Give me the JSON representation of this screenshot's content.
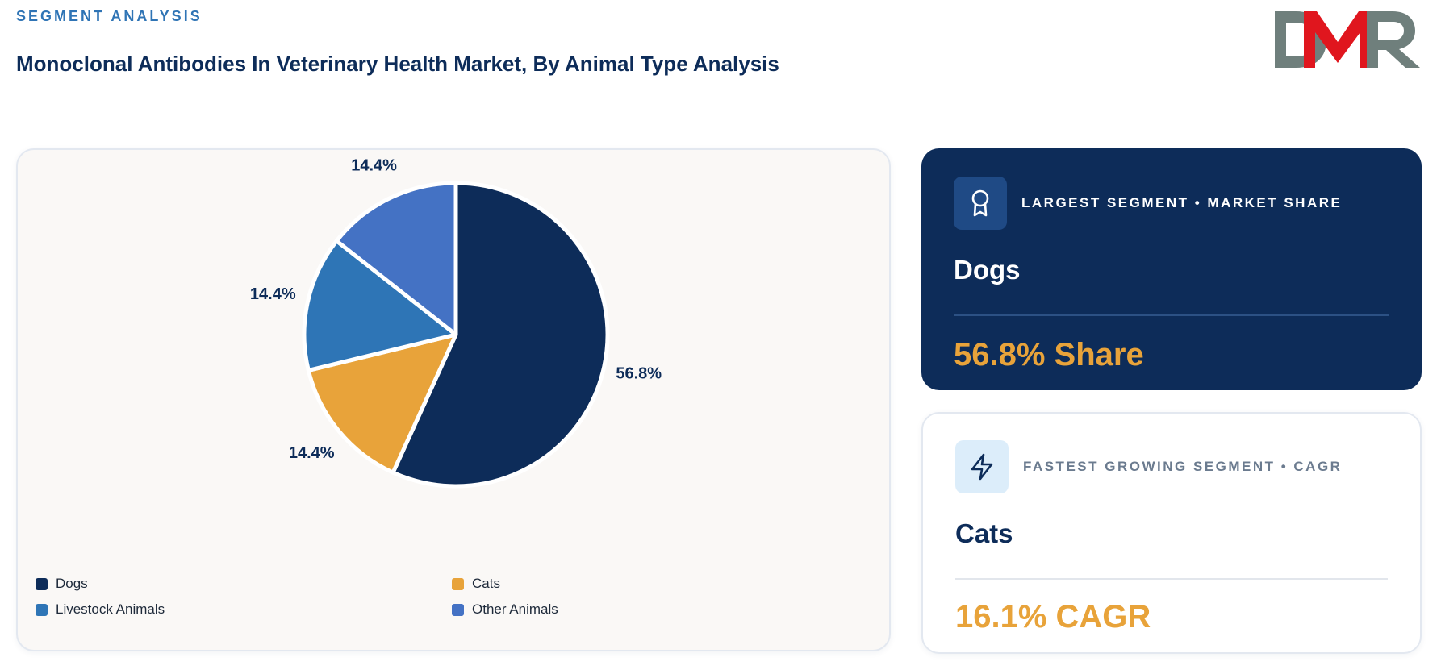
{
  "header": {
    "eyebrow": "SEGMENT ANALYSIS",
    "title": "Monoclonal Antibodies In Veterinary Health Market, By Animal Type Analysis"
  },
  "logo": {
    "text": "DMR",
    "colors": {
      "d": "#6f7f7c",
      "m": "#e0161e",
      "r": "#6f7f7c"
    }
  },
  "chart_data": {
    "type": "pie",
    "title": "",
    "categories": [
      "Dogs",
      "Cats",
      "Livestock Animals",
      "Other Animals"
    ],
    "values": [
      56.8,
      14.4,
      14.4,
      14.4
    ],
    "labels": [
      "56.8%",
      "14.4%",
      "14.4%",
      "14.4%"
    ],
    "colors": [
      "#0d2c59",
      "#e8a33a",
      "#2e75b6",
      "#4472c4"
    ],
    "legend_position": "bottom"
  },
  "cards": {
    "largest": {
      "label": "LARGEST SEGMENT • MARKET SHARE",
      "name": "Dogs",
      "value": "56.8% Share",
      "icon": "award-ribbon-icon"
    },
    "fastest": {
      "label": "FASTEST GROWING SEGMENT • CAGR",
      "name": "Cats",
      "value": "16.1% CAGR",
      "icon": "lightning-bolt-icon"
    }
  },
  "theme": {
    "navy": "#0d2c59",
    "accent": "#e8a33a",
    "blue": "#2f74b5"
  }
}
